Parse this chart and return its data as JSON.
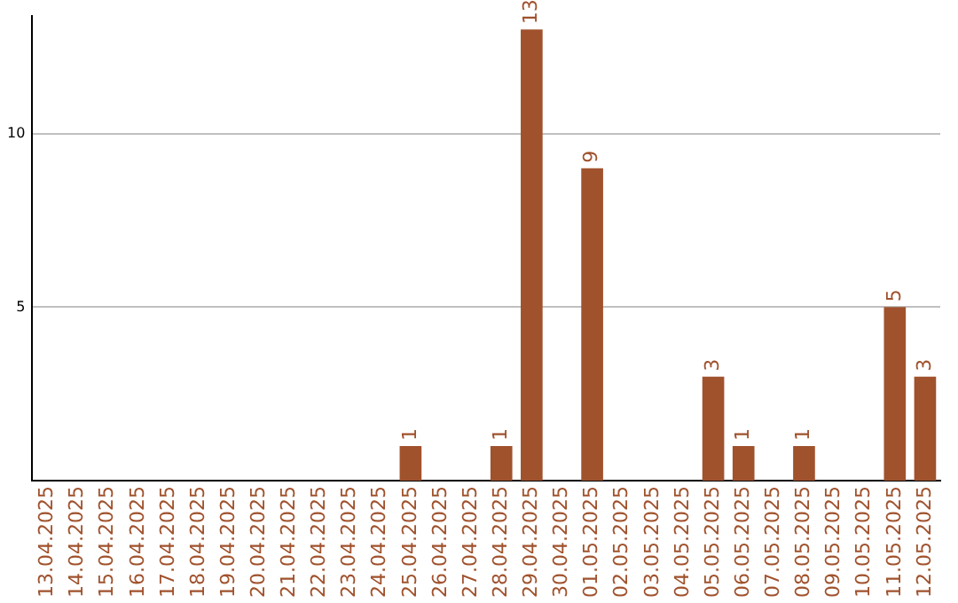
{
  "chart_data": {
    "type": "bar",
    "categories": [
      "13.04.2025",
      "14.04.2025",
      "15.04.2025",
      "16.04.2025",
      "17.04.2025",
      "18.04.2025",
      "19.04.2025",
      "20.04.2025",
      "21.04.2025",
      "22.04.2025",
      "23.04.2025",
      "24.04.2025",
      "25.04.2025",
      "26.04.2025",
      "27.04.2025",
      "28.04.2025",
      "29.04.2025",
      "30.04.2025",
      "01.05.2025",
      "02.05.2025",
      "03.05.2025",
      "04.05.2025",
      "05.05.2025",
      "06.05.2025",
      "07.05.2025",
      "08.05.2025",
      "09.05.2025",
      "10.05.2025",
      "11.05.2025",
      "12.05.2025"
    ],
    "values": [
      0,
      0,
      0,
      0,
      0,
      0,
      0,
      0,
      0,
      0,
      0,
      0,
      1,
      0,
      0,
      1,
      13,
      0,
      9,
      0,
      0,
      0,
      3,
      1,
      0,
      1,
      0,
      0,
      5,
      3
    ],
    "value_labels": [
      null,
      null,
      null,
      null,
      null,
      null,
      null,
      null,
      null,
      null,
      null,
      null,
      "1",
      null,
      null,
      "1",
      "13",
      null,
      "9",
      null,
      null,
      null,
      "3",
      "1",
      null,
      "1",
      null,
      null,
      "5",
      "3"
    ],
    "color": "#a0522d",
    "ylim": [
      0,
      13.4
    ],
    "yticks": [
      5,
      10
    ],
    "grid": "y"
  }
}
